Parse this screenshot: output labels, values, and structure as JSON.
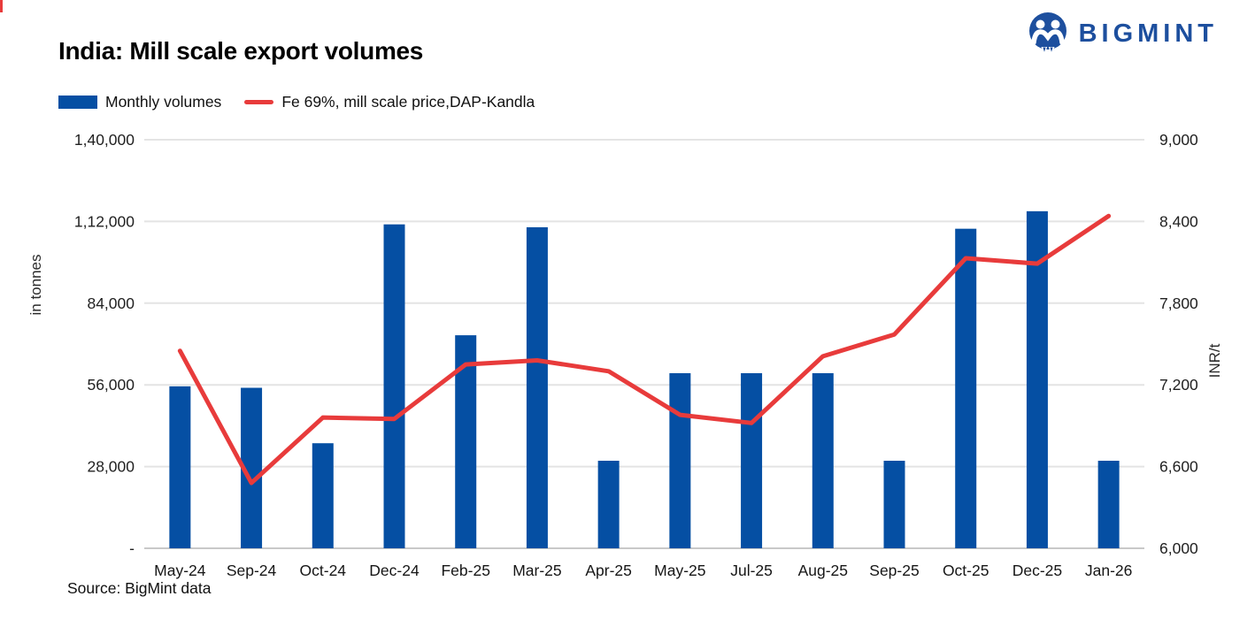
{
  "header": {
    "title": "India: Mill scale export volumes",
    "logo_text": "BIGMINT"
  },
  "legend": [
    {
      "label": "Monthly volumes"
    },
    {
      "label": "Fe 69%, mill scale price,DAP-Kandla"
    }
  ],
  "footer": {
    "source_text": "Source: BigMint data"
  },
  "colors": {
    "bar": "#054fa3",
    "line": "#e83b3b",
    "logo_blue": "#1d4f9e",
    "grid_line": "#e4e4e4",
    "axis_line": "#c9c9c9"
  },
  "chart_data": {
    "type": "bar",
    "subtype": "combo-bar-line-dual-axis",
    "title": "India: Mill scale export volumes",
    "grid": "horizontal",
    "legend_position": "top-left",
    "categories": [
      "May-24",
      "Sep-24",
      "Oct-24",
      "Dec-24",
      "Feb-25",
      "Mar-25",
      "Apr-25",
      "May-25",
      "Jul-25",
      "Aug-25",
      "Sep-25",
      "Oct-25",
      "Dec-25",
      "Jan-26"
    ],
    "series": [
      {
        "name": "Monthly volumes",
        "type": "bar",
        "axis": "left",
        "color": "#054fa3",
        "values": [
          55500,
          55000,
          36000,
          111000,
          73000,
          110000,
          30000,
          60000,
          60000,
          60000,
          30000,
          109500,
          115500,
          30000
        ]
      },
      {
        "name": "Fe 69%, mill scale price,DAP-Kandla",
        "type": "line",
        "axis": "right",
        "color": "#e83b3b",
        "values": [
          7450,
          6480,
          6960,
          6950,
          7350,
          7380,
          7300,
          6980,
          6920,
          7410,
          7570,
          8130,
          8090,
          8440
        ]
      }
    ],
    "left_axis": {
      "label": "in tonnes",
      "min": 0,
      "max": 140000,
      "tick_values": [
        0,
        28000,
        56000,
        84000,
        112000,
        140000
      ],
      "tick_labels": [
        "-",
        "28,000",
        "56,000",
        "84,000",
        "1,12,000",
        "1,40,000"
      ]
    },
    "right_axis": {
      "label": "INR/t",
      "min": 6000,
      "max": 9000,
      "tick_values": [
        6000,
        6600,
        7200,
        7800,
        8400,
        9000
      ],
      "tick_labels": [
        "6,000",
        "6,600",
        "7,200",
        "7,800",
        "8,400",
        "9,000"
      ]
    }
  }
}
